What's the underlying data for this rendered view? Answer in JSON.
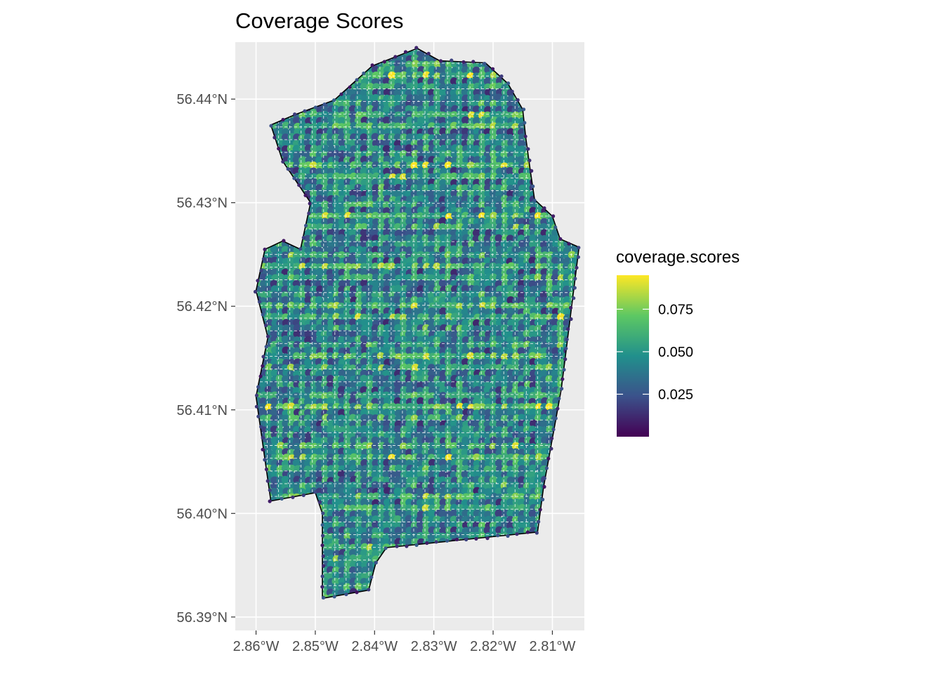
{
  "chart_data": {
    "type": "heatmap",
    "title": "Coverage Scores",
    "xlabel": "",
    "ylabel": "",
    "x_ticks": [
      -2.86,
      -2.85,
      -2.84,
      -2.83,
      -2.82,
      -2.81
    ],
    "x_tick_labels": [
      "2.86°W",
      "2.85°W",
      "2.84°W",
      "2.83°W",
      "2.82°W",
      "2.81°W"
    ],
    "y_ticks": [
      56.39,
      56.4,
      56.41,
      56.42,
      56.43,
      56.44
    ],
    "y_tick_labels": [
      "56.39°N",
      "56.40°N",
      "56.41°N",
      "56.42°N",
      "56.43°N",
      "56.44°N"
    ],
    "xlim": [
      -2.8635,
      -2.8046
    ],
    "ylim": [
      56.3887,
      56.4455
    ],
    "grid": true,
    "boundary": [
      [
        -2.8575,
        56.4375
      ],
      [
        -2.8534,
        56.4385
      ],
      [
        -2.8468,
        56.4399
      ],
      [
        -2.8404,
        56.4432
      ],
      [
        -2.8328,
        56.4449
      ],
      [
        -2.829,
        56.4437
      ],
      [
        -2.8213,
        56.4435
      ],
      [
        -2.8175,
        56.4415
      ],
      [
        -2.815,
        56.439
      ],
      [
        -2.8145,
        56.4363
      ],
      [
        -2.8137,
        56.433
      ],
      [
        -2.813,
        56.4303
      ],
      [
        -2.81,
        56.4287
      ],
      [
        -2.8087,
        56.4265
      ],
      [
        -2.8055,
        56.4257
      ],
      [
        -2.8085,
        56.412
      ],
      [
        -2.8115,
        56.4025
      ],
      [
        -2.8125,
        56.3982
      ],
      [
        -2.838,
        56.3967
      ],
      [
        -2.8398,
        56.3952
      ],
      [
        -2.841,
        56.3926
      ],
      [
        -2.8488,
        56.3918
      ],
      [
        -2.8488,
        56.4
      ],
      [
        -2.85,
        56.402
      ],
      [
        -2.8575,
        56.4012
      ],
      [
        -2.86,
        56.4113
      ],
      [
        -2.858,
        56.417
      ],
      [
        -2.86,
        56.4215
      ],
      [
        -2.8585,
        56.4255
      ],
      [
        -2.8555,
        56.4263
      ],
      [
        -2.8525,
        56.4255
      ],
      [
        -2.8508,
        56.43
      ],
      [
        -2.8555,
        56.434
      ],
      [
        -2.8575,
        56.4375
      ]
    ],
    "value_range": [
      0.0,
      0.095
    ],
    "cell_grid_spacing_deg": [
      0.0019,
      0.00123
    ],
    "colorscale": [
      "#440154",
      "#3b528b",
      "#21908c",
      "#5dc863",
      "#fde725"
    ],
    "panel_background": "#ebebeb",
    "gridline_color": "#ffffff",
    "legend": {
      "title": "coverage.scores",
      "placement": "right",
      "ticks": [
        0.025,
        0.05,
        0.075
      ],
      "tick_labels": [
        "0.025",
        "0.050",
        "0.075"
      ]
    }
  }
}
